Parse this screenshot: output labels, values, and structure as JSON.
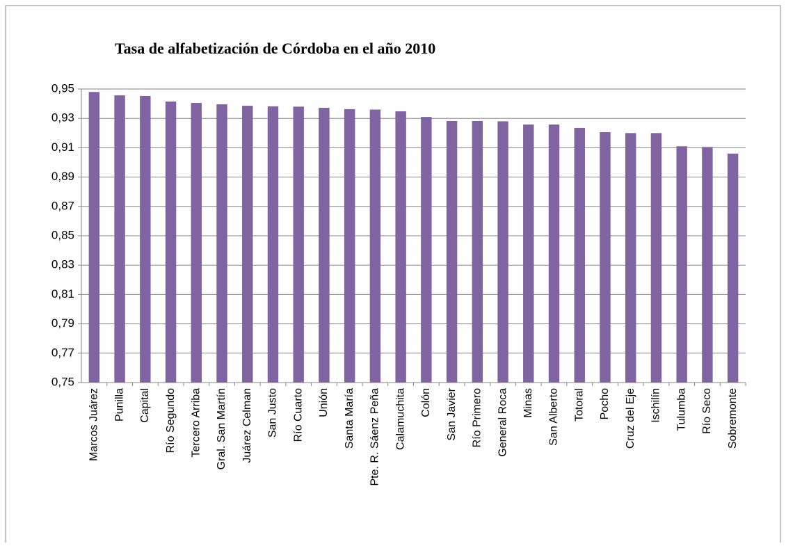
{
  "chart_data": {
    "type": "bar",
    "title": "Tasa de alfabetización de Córdoba en el año 2010",
    "categories": [
      "Marcos Juárez",
      "Punilla",
      "Capital",
      "Río Segundo",
      "Tercero Arriba",
      "Gral. San Martín",
      "Juárez Celman",
      "San Justo",
      "Río Cuarto",
      "Unión",
      "Santa María",
      "Pte. R. Sáenz Peña",
      "Calamuchita",
      "Colón",
      "San Javier",
      "Río Primero",
      "General Roca",
      "Minas",
      "San Alberto",
      "Totoral",
      "Pocho",
      "Cruz del Eje",
      "Ischilín",
      "Tulumba",
      "Río Seco",
      "Sobremonte"
    ],
    "values": [
      0.948,
      0.9457,
      0.9453,
      0.9415,
      0.9405,
      0.9396,
      0.9386,
      0.9382,
      0.938,
      0.9372,
      0.9363,
      0.936,
      0.9348,
      0.931,
      0.9282,
      0.9282,
      0.928,
      0.9258,
      0.9258,
      0.9235,
      0.9206,
      0.92,
      0.92,
      0.911,
      0.9105,
      0.906
    ],
    "color": "#8064a2",
    "ylim": [
      0.75,
      0.95
    ],
    "yticks": [
      {
        "value": 0.75,
        "label": "0,75"
      },
      {
        "value": 0.77,
        "label": "0,77"
      },
      {
        "value": 0.79,
        "label": "0,79"
      },
      {
        "value": 0.81,
        "label": "0,81"
      },
      {
        "value": 0.83,
        "label": "0,83"
      },
      {
        "value": 0.85,
        "label": "0,85"
      },
      {
        "value": 0.87,
        "label": "0,87"
      },
      {
        "value": 0.89,
        "label": "0,89"
      },
      {
        "value": 0.91,
        "label": "0,91"
      },
      {
        "value": 0.93,
        "label": "0,93"
      },
      {
        "value": 0.95,
        "label": "0,95"
      }
    ],
    "grid": true
  }
}
